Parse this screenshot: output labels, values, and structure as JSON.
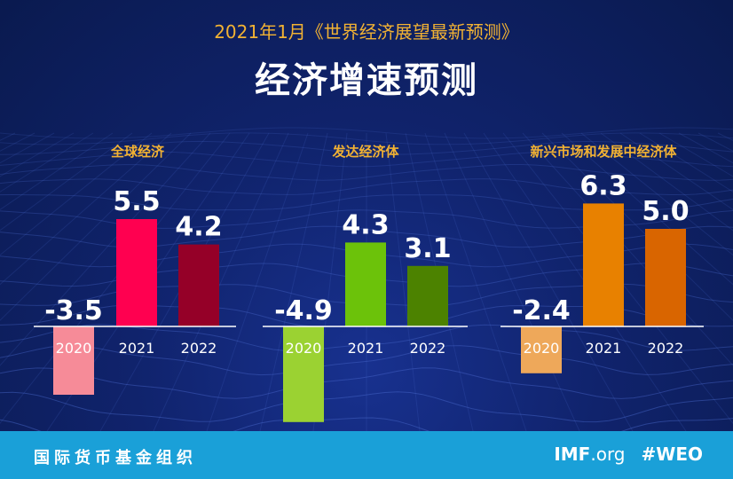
{
  "header": {
    "subtitle": "2021年1月《世界经济展望最新预测》",
    "title": "经济增速预测"
  },
  "footer": {
    "org_name": "国际货币基金组织",
    "site_brand": "IMF",
    "site_suffix": ".org",
    "hashtag": "#WEO"
  },
  "chart_data": [
    {
      "type": "bar",
      "title": "全球经济",
      "categories": [
        "2020",
        "2021",
        "2022"
      ],
      "values": [
        -3.5,
        5.5,
        4.2
      ],
      "value_labels": [
        "-3.5",
        "5.5",
        "4.2"
      ],
      "colors": [
        "#f68b98",
        "#ff0050",
        "#950028"
      ]
    },
    {
      "type": "bar",
      "title": "发达经济体",
      "categories": [
        "2020",
        "2021",
        "2022"
      ],
      "values": [
        -4.9,
        4.3,
        3.1
      ],
      "value_labels": [
        "-4.9",
        "4.3",
        "3.1"
      ],
      "colors": [
        "#9bd232",
        "#6cc20a",
        "#4c8200"
      ]
    },
    {
      "type": "bar",
      "title": "新兴市场和发展中经济体",
      "categories": [
        "2020",
        "2021",
        "2022"
      ],
      "values": [
        -2.4,
        6.3,
        5.0
      ],
      "value_labels": [
        "-2.4",
        "6.3",
        "5.0"
      ],
      "colors": [
        "#eea85a",
        "#e88100",
        "#d96500"
      ]
    }
  ]
}
